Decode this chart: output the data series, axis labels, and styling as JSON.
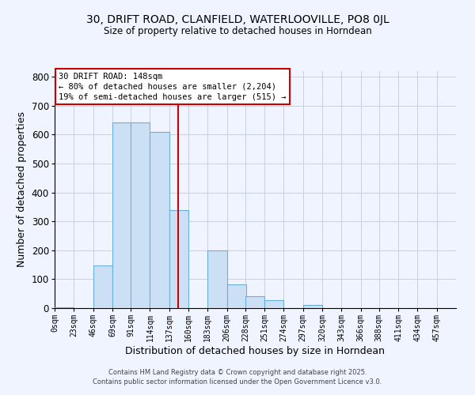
{
  "title1": "30, DRIFT ROAD, CLANFIELD, WATERLOOVILLE, PO8 0JL",
  "title2": "Size of property relative to detached houses in Horndean",
  "xlabel": "Distribution of detached houses by size in Horndean",
  "ylabel": "Number of detached properties",
  "bar_left_edges": [
    0,
    23,
    46,
    69,
    91,
    114,
    137,
    160,
    183,
    206,
    228,
    251,
    274,
    297,
    320,
    343,
    366,
    388,
    411,
    434
  ],
  "bar_heights": [
    4,
    0,
    147,
    641,
    641,
    610,
    338,
    0,
    199,
    83,
    42,
    26,
    0,
    10,
    0,
    0,
    0,
    0,
    0,
    0
  ],
  "bin_width": 23,
  "bar_fill_color": "#cce0f5",
  "bar_edge_color": "#6baed6",
  "vline_x": 148,
  "vline_color": "#cc0000",
  "annotation_box_text": "30 DRIFT ROAD: 148sqm\n← 80% of detached houses are smaller (2,204)\n19% of semi-detached houses are larger (515) →",
  "ylim": [
    0,
    820
  ],
  "yticks": [
    0,
    100,
    200,
    300,
    400,
    500,
    600,
    700,
    800
  ],
  "xtick_labels": [
    "0sqm",
    "23sqm",
    "46sqm",
    "69sqm",
    "91sqm",
    "114sqm",
    "137sqm",
    "160sqm",
    "183sqm",
    "206sqm",
    "228sqm",
    "251sqm",
    "274sqm",
    "297sqm",
    "320sqm",
    "343sqm",
    "366sqm",
    "388sqm",
    "411sqm",
    "434sqm",
    "457sqm"
  ],
  "xtick_positions": [
    0,
    23,
    46,
    69,
    91,
    114,
    137,
    160,
    183,
    206,
    228,
    251,
    274,
    297,
    320,
    343,
    366,
    388,
    411,
    434,
    457
  ],
  "xlim": [
    0,
    480
  ],
  "footer1": "Contains HM Land Registry data © Crown copyright and database right 2025.",
  "footer2": "Contains public sector information licensed under the Open Government Licence v3.0.",
  "bg_color": "#f0f4ff",
  "grid_color": "#c8d0e0"
}
